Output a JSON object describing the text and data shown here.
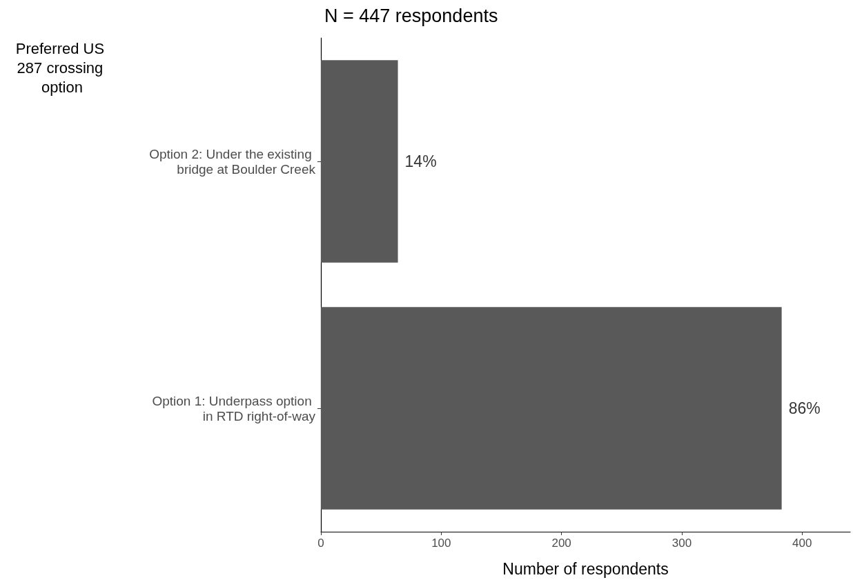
{
  "chart_data": {
    "type": "bar",
    "orientation": "horizontal",
    "title": "N = 447 respondents",
    "xlabel": "Number of respondents",
    "ylabel": "Preferred US 287 crossing option",
    "categories": [
      "Option 2: Under the existing bridge at Boulder Creek",
      "Option 1: Underpass option in RTD right-of-way"
    ],
    "values": [
      64,
      383
    ],
    "color": "#595959",
    "annotations": [
      {
        "text": "14%",
        "x": 64,
        "y": "Option 2: Under the existing bridge at Boulder Creek"
      },
      {
        "text": "86%",
        "x": 383,
        "y": "Option 1: Underpass option in RTD right-of-way"
      }
    ],
    "xlim": [
      0,
      440
    ],
    "xticks": [
      0,
      100,
      200,
      300,
      400
    ],
    "grid": false
  }
}
